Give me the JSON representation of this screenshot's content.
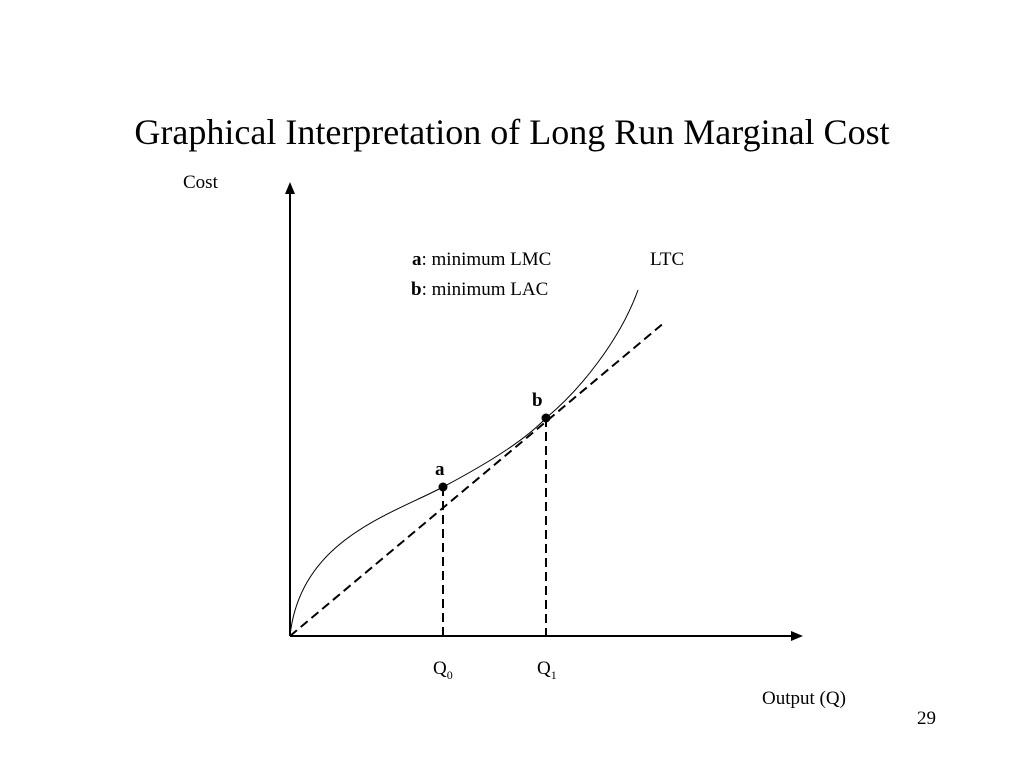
{
  "slide": {
    "title": "Graphical Interpretation of Long Run Marginal Cost",
    "page_number": "29"
  },
  "diagram": {
    "y_axis_label": "Cost",
    "x_axis_label": "Output (Q)",
    "curve_label": "LTC",
    "legend": {
      "a_key": "a",
      "a_text": ": minimum LMC",
      "b_key": "b",
      "b_text": ": minimum LAC"
    },
    "points": {
      "a": "a",
      "b": "b"
    },
    "ticks": {
      "q0_main": "Q",
      "q0_sub": "0",
      "q1_main": "Q",
      "q1_sub": "1"
    }
  }
}
